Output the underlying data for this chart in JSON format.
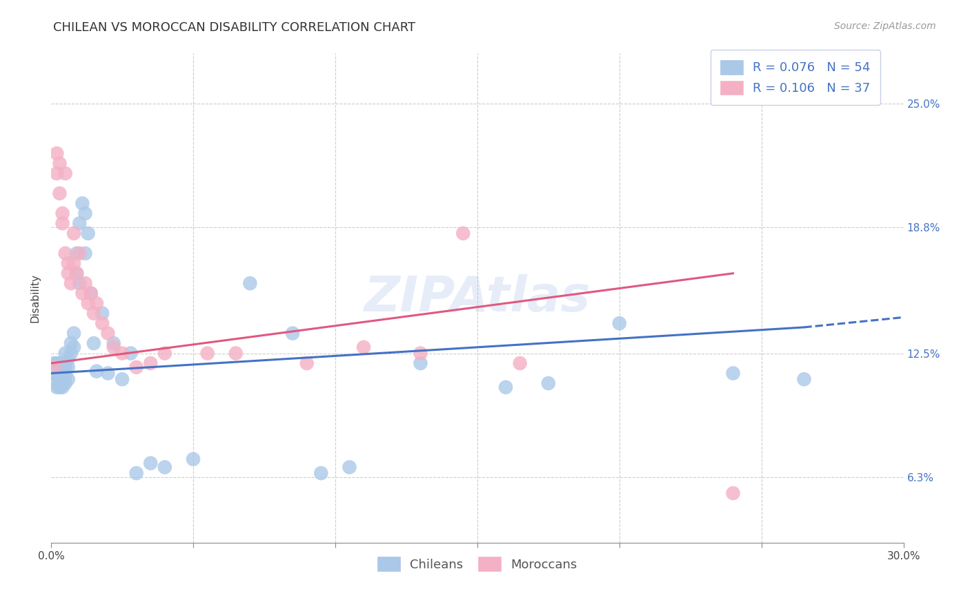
{
  "title": "CHILEAN VS MOROCCAN DISABILITY CORRELATION CHART",
  "source": "Source: ZipAtlas.com",
  "ylabel": "Disability",
  "y_ticks": [
    0.063,
    0.125,
    0.188,
    0.25
  ],
  "y_tick_labels": [
    "6.3%",
    "12.5%",
    "18.8%",
    "25.0%"
  ],
  "x_lim": [
    0.0,
    0.3
  ],
  "y_lim": [
    0.03,
    0.275
  ],
  "chilean_color": "#aac8e8",
  "moroccan_color": "#f4b0c4",
  "chilean_line_color": "#4472c4",
  "moroccan_line_color": "#e05880",
  "R_chilean": 0.076,
  "N_chilean": 54,
  "R_moroccan": 0.106,
  "N_moroccan": 37,
  "chilean_x": [
    0.001,
    0.001,
    0.001,
    0.002,
    0.002,
    0.002,
    0.003,
    0.003,
    0.003,
    0.003,
    0.004,
    0.004,
    0.004,
    0.005,
    0.005,
    0.005,
    0.005,
    0.006,
    0.006,
    0.006,
    0.007,
    0.007,
    0.008,
    0.008,
    0.009,
    0.009,
    0.01,
    0.01,
    0.011,
    0.012,
    0.012,
    0.013,
    0.014,
    0.015,
    0.016,
    0.018,
    0.02,
    0.022,
    0.025,
    0.028,
    0.03,
    0.035,
    0.04,
    0.05,
    0.07,
    0.085,
    0.095,
    0.105,
    0.13,
    0.16,
    0.175,
    0.2,
    0.24,
    0.265
  ],
  "chilean_y": [
    0.12,
    0.115,
    0.11,
    0.12,
    0.114,
    0.108,
    0.118,
    0.113,
    0.12,
    0.108,
    0.116,
    0.112,
    0.108,
    0.125,
    0.118,
    0.114,
    0.11,
    0.122,
    0.118,
    0.112,
    0.13,
    0.125,
    0.135,
    0.128,
    0.175,
    0.165,
    0.19,
    0.16,
    0.2,
    0.195,
    0.175,
    0.185,
    0.155,
    0.13,
    0.116,
    0.145,
    0.115,
    0.13,
    0.112,
    0.125,
    0.065,
    0.07,
    0.068,
    0.072,
    0.16,
    0.135,
    0.065,
    0.068,
    0.12,
    0.108,
    0.11,
    0.14,
    0.115,
    0.112
  ],
  "moroccan_x": [
    0.001,
    0.002,
    0.002,
    0.003,
    0.003,
    0.004,
    0.004,
    0.005,
    0.005,
    0.006,
    0.006,
    0.007,
    0.008,
    0.008,
    0.009,
    0.01,
    0.011,
    0.012,
    0.013,
    0.014,
    0.015,
    0.016,
    0.018,
    0.02,
    0.022,
    0.025,
    0.03,
    0.035,
    0.04,
    0.055,
    0.065,
    0.09,
    0.11,
    0.13,
    0.145,
    0.165,
    0.24
  ],
  "moroccan_y": [
    0.118,
    0.215,
    0.225,
    0.205,
    0.22,
    0.195,
    0.19,
    0.175,
    0.215,
    0.17,
    0.165,
    0.16,
    0.185,
    0.17,
    0.165,
    0.175,
    0.155,
    0.16,
    0.15,
    0.155,
    0.145,
    0.15,
    0.14,
    0.135,
    0.128,
    0.125,
    0.118,
    0.12,
    0.125,
    0.125,
    0.125,
    0.12,
    0.128,
    0.125,
    0.185,
    0.12,
    0.055
  ],
  "background_color": "#ffffff",
  "watermark_text": "ZIPAtlas",
  "title_fontsize": 13,
  "axis_label_fontsize": 11,
  "tick_label_fontsize": 11,
  "legend_fontsize": 13,
  "source_fontsize": 10
}
